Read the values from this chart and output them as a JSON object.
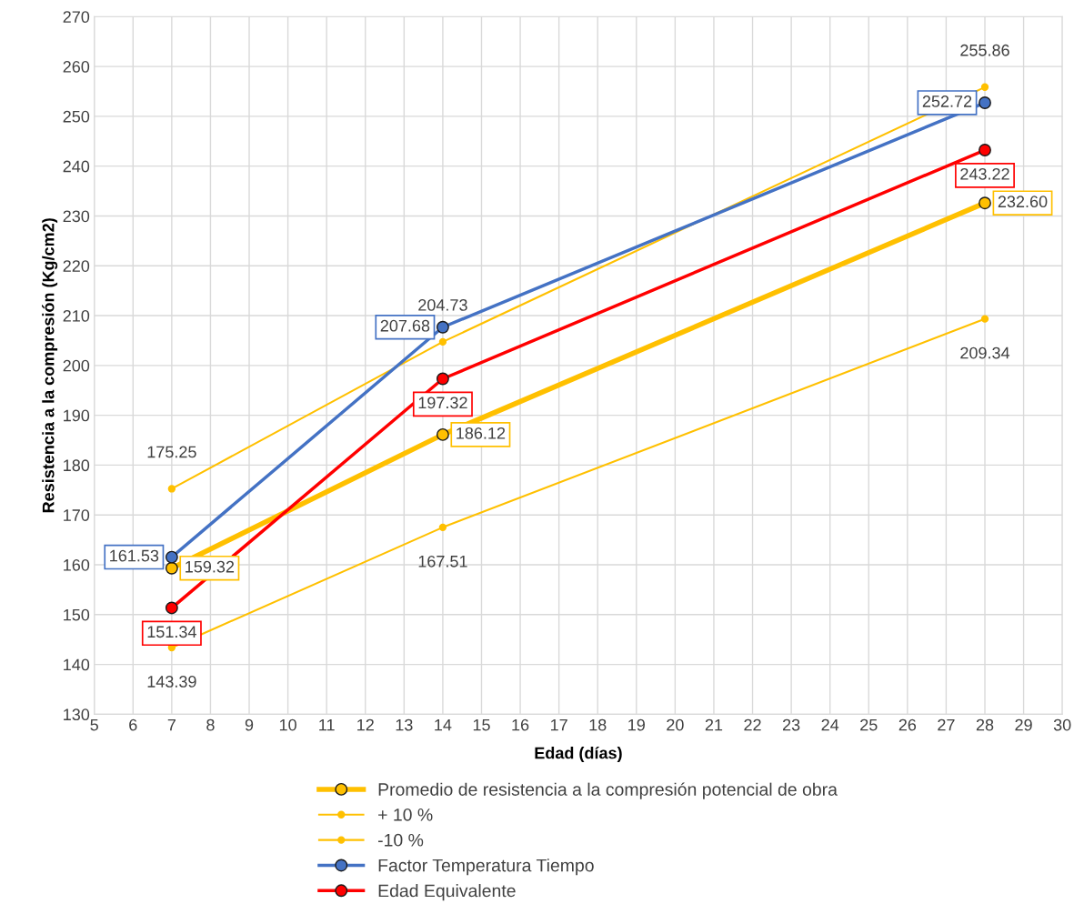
{
  "chart_data": {
    "type": "line",
    "xlabel": "Edad (días)",
    "ylabel": "Resistencia a la compresión (Kg/cm2)",
    "x": [
      7,
      14,
      28
    ],
    "xlim": [
      5,
      30
    ],
    "xticks": [
      5,
      6,
      7,
      8,
      9,
      10,
      11,
      12,
      13,
      14,
      15,
      16,
      17,
      18,
      19,
      20,
      21,
      22,
      23,
      24,
      25,
      26,
      27,
      28,
      29,
      30
    ],
    "ylim": [
      130,
      270
    ],
    "yticks": [
      130,
      140,
      150,
      160,
      170,
      180,
      190,
      200,
      210,
      220,
      230,
      240,
      250,
      260,
      270
    ],
    "grid": true,
    "legend": "bottom",
    "marker": "circle",
    "series": [
      {
        "name": "Promedio de resistencia a la compresión potencial de obra",
        "color": "#ffc000",
        "values": [
          159.32,
          186.12,
          232.6
        ],
        "value_labels": [
          "159.32",
          "186.12",
          "232.60"
        ]
      },
      {
        "name": "+ 10 %",
        "color": "#ffc000",
        "values": [
          175.25,
          204.73,
          255.86
        ],
        "value_labels": [
          "175.25",
          "204.73",
          "255.86"
        ]
      },
      {
        "name": "-10 %",
        "color": "#ffc000",
        "values": [
          143.39,
          167.51,
          209.34
        ],
        "value_labels": [
          "143.39",
          "167.51",
          "209.34"
        ]
      },
      {
        "name": "Factor Temperatura Tiempo",
        "color": "#4472c4",
        "values": [
          161.53,
          207.68,
          252.72
        ],
        "value_labels": [
          "161.53",
          "207.68",
          "252.72"
        ]
      },
      {
        "name": "Edad Equivalente",
        "color": "#ff0000",
        "values": [
          151.34,
          197.32,
          243.22
        ],
        "value_labels": [
          "151.34",
          "197.32",
          "243.22"
        ]
      }
    ]
  }
}
